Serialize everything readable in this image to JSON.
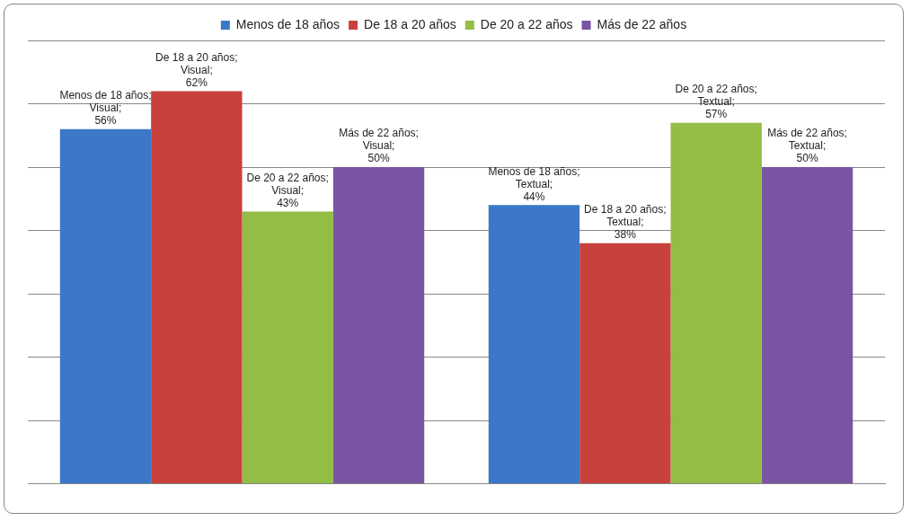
{
  "chart_data": {
    "type": "bar",
    "categories": [
      null,
      null
    ],
    "series": [
      {
        "name": "Menos de 18 años",
        "color": "#3b78c8",
        "values": [
          56,
          44
        ],
        "value_labels": [
          "Menos de 18 años; Visual; 56%",
          "Menos de 18 años; Textual; 44%"
        ]
      },
      {
        "name": "De 18 a 20 años",
        "color": "#c9413d",
        "values": [
          62,
          38
        ],
        "value_labels": [
          "De 18 a 20 años; Visual; 62%",
          "De 18 a 20 años; Textual; 38%"
        ]
      },
      {
        "name": "De 20 a 22 años",
        "color": "#93bd45",
        "values": [
          43,
          57
        ],
        "value_labels": [
          "De 20 a 22 años; Visual; 43%",
          "De 20 a 22 años; Textual; 57%"
        ]
      },
      {
        "name": "Más de 22 años",
        "color": "#7a55a4",
        "values": [
          50,
          50
        ],
        "value_labels": [
          "Más de 22 años; Visual; 50%",
          "Más de 22 años; Textual; 50%"
        ]
      }
    ],
    "ylim": [
      0,
      70
    ],
    "yticks": [
      {
        "value": 0,
        "label": null
      },
      {
        "value": 10,
        "label": null
      },
      {
        "value": 20,
        "label": null
      },
      {
        "value": 30,
        "label": null
      },
      {
        "value": 40,
        "label": null
      },
      {
        "value": 50,
        "label": null
      },
      {
        "value": 60,
        "label": null
      },
      {
        "value": 70,
        "label": null
      }
    ],
    "grid": "y",
    "legend": "top"
  }
}
